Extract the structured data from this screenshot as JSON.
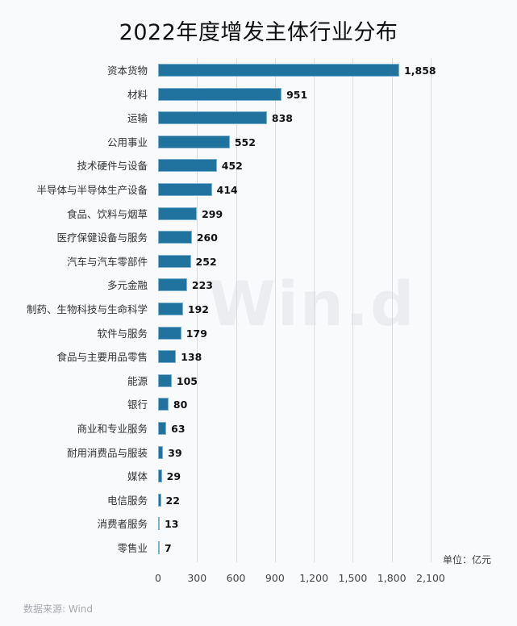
{
  "title": "2022年度增发主体行业分布",
  "watermark": "Win.d",
  "unit_label": "单位：亿元",
  "source": "数据来源: Wind",
  "colors": {
    "bar": "#21739f",
    "bar_border": "#7fb2d0",
    "grid": "#d9dbe0",
    "background": "#f9fafc"
  },
  "chart_data": {
    "type": "bar",
    "orientation": "horizontal",
    "title": "2022年度增发主体行业分布",
    "xlabel": "单位：亿元",
    "ylabel": "",
    "xlim": [
      0,
      2100
    ],
    "x_ticks": [
      "0",
      "300",
      "600",
      "900",
      "1,200",
      "1,500",
      "1,800",
      "2,100"
    ],
    "grid": true,
    "legend": null,
    "categories": [
      "资本货物",
      "材料",
      "运输",
      "公用事业",
      "技术硬件与设备",
      "半导体与半导体生产设备",
      "食品、饮料与烟草",
      "医疗保健设备与服务",
      "汽车与汽车零部件",
      "多元金融",
      "制药、生物科技与生命科学",
      "软件与服务",
      "食品与主要用品零售",
      "能源",
      "银行",
      "商业和专业服务",
      "耐用消费品与服装",
      "媒体",
      "电信服务",
      "消费者服务",
      "零售业"
    ],
    "values": [
      1858,
      951,
      838,
      552,
      452,
      414,
      299,
      260,
      252,
      223,
      192,
      179,
      138,
      105,
      80,
      63,
      39,
      29,
      22,
      13,
      7
    ],
    "value_labels": [
      "1,858",
      "951",
      "838",
      "552",
      "452",
      "414",
      "299",
      "260",
      "252",
      "223",
      "192",
      "179",
      "138",
      "105",
      "80",
      "63",
      "39",
      "29",
      "22",
      "13",
      "7"
    ]
  }
}
